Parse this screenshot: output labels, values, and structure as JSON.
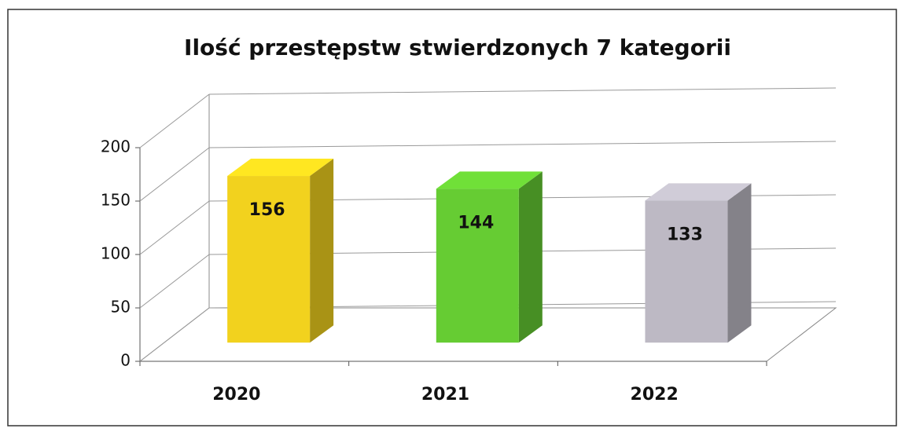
{
  "chart_data": {
    "type": "bar3d",
    "title": "Ilość przestępstw stwierdzonych 7 kategorii",
    "categories": [
      "2020",
      "2021",
      "2022"
    ],
    "values": [
      156,
      144,
      133
    ],
    "colors": [
      "#f2d21e",
      "#66cc33",
      "#bdb9c4"
    ],
    "ylim": [
      0,
      200
    ],
    "yticks": [
      0,
      50,
      100,
      150,
      200
    ],
    "grid": true
  }
}
